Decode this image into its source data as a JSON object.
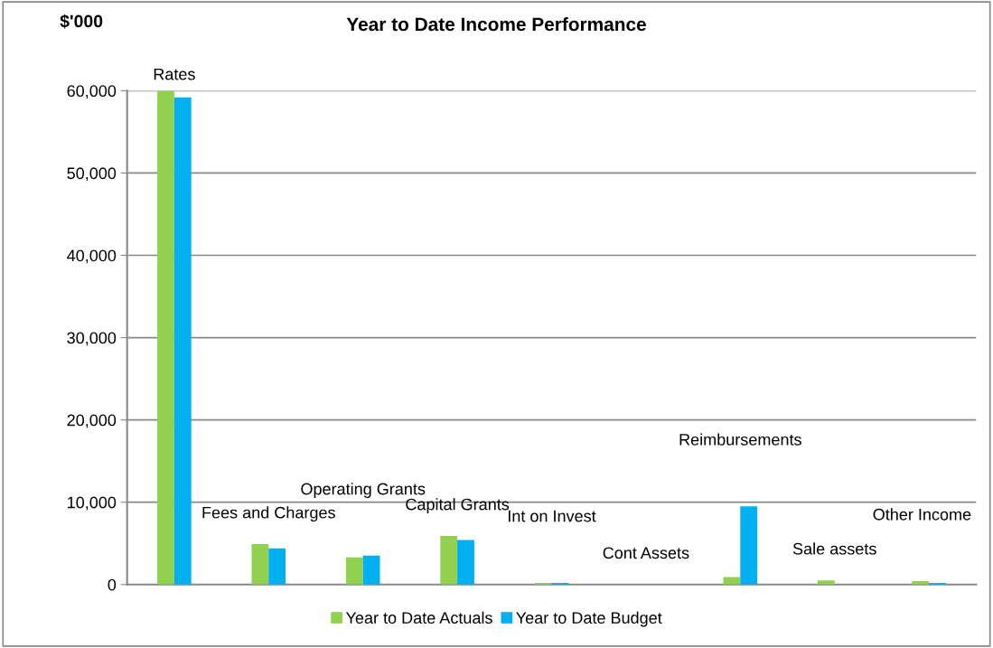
{
  "chart_data": {
    "type": "bar",
    "title": "Year to Date Income Performance",
    "ylabel": "$'000",
    "categories": [
      "Rates",
      "Fees and Charges",
      "Operating Grants",
      "Capital Grants",
      "Int on Invest",
      "Cont Assets",
      "Reimbursements",
      "Sale assets",
      "Other Income"
    ],
    "series": [
      {
        "name": "Year to Date Actuals",
        "color": "#92d050",
        "values": [
          60000,
          4900,
          3300,
          5900,
          200,
          0,
          900,
          500,
          400
        ]
      },
      {
        "name": "Year to Date Budget",
        "color": "#00b0f0",
        "values": [
          59200,
          4400,
          3500,
          5400,
          200,
          null,
          9500,
          0,
          200
        ]
      }
    ],
    "ylim": [
      0,
      60000
    ],
    "yticks": [
      {
        "value": 0,
        "label": "0"
      },
      {
        "value": 10000,
        "label": "10,000"
      },
      {
        "value": 20000,
        "label": "20,000"
      },
      {
        "value": 30000,
        "label": "30,000"
      },
      {
        "value": 40000,
        "label": "40,000"
      },
      {
        "value": 50000,
        "label": "50,000"
      },
      {
        "value": 60000,
        "label": "60,000"
      }
    ],
    "grid": "y",
    "legend": "bottom"
  }
}
